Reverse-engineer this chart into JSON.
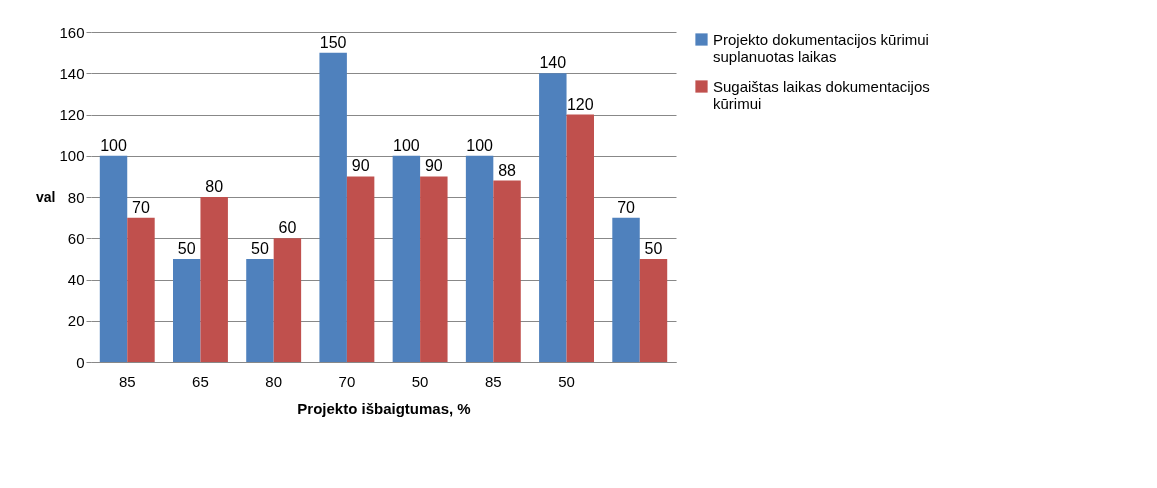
{
  "chart_data": {
    "type": "bar",
    "xlabel": "Projekto  išbaigtumas, %",
    "ylabel": "val",
    "categories": [
      "85",
      "65",
      "80",
      "70",
      "50",
      "85",
      "50",
      null
    ],
    "series": [
      {
        "name": "Projekto dokumentacijos kūrimui suplanuotas laikas",
        "color": "#4f81bd",
        "values": [
          100,
          50,
          50,
          150,
          100,
          100,
          140,
          70
        ]
      },
      {
        "name": "Sugaištas laikas dokumentacijos kūrimui",
        "color": "#c0504d",
        "values": [
          70,
          80,
          60,
          90,
          90,
          88,
          120,
          50
        ]
      }
    ],
    "ylim": [
      0,
      160
    ],
    "yticks": [
      0,
      20,
      40,
      60,
      80,
      100,
      120,
      140,
      160
    ],
    "grid": "y",
    "legend": "right",
    "data_labels": true
  }
}
